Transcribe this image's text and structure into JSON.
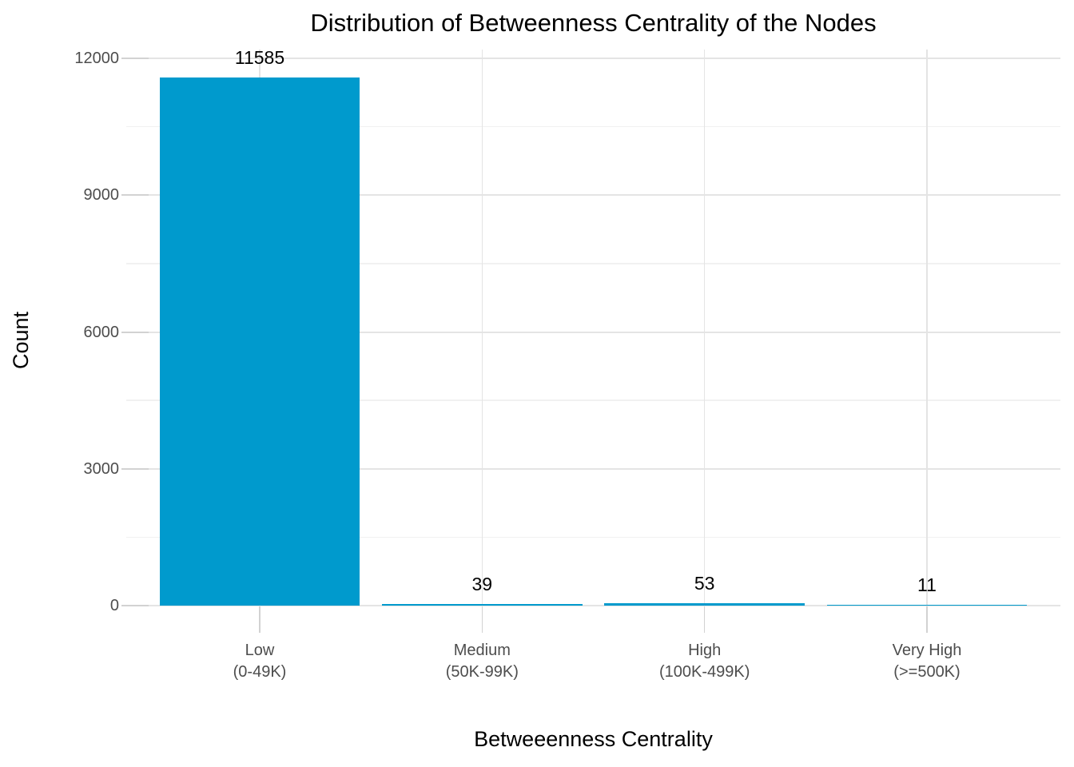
{
  "chart_data": {
    "type": "bar",
    "title": "Distribution of Betweenness Centrality of the Nodes",
    "xlabel": "Betweeenness Centrality",
    "ylabel": "Count",
    "categories": [
      [
        "Low",
        "(0-49K)"
      ],
      [
        "Medium",
        "(50K-99K)"
      ],
      [
        "High",
        "(100K-499K)"
      ],
      [
        "Very High",
        "(>=500K)"
      ]
    ],
    "values": [
      11585,
      39,
      53,
      11
    ],
    "bar_labels": [
      "11585",
      "39",
      "53",
      "11"
    ],
    "yticks": [
      0,
      3000,
      6000,
      9000,
      12000
    ],
    "ylim": [
      0,
      12000
    ],
    "grid": "horizontal major+minor, vertical at category centers",
    "legend": "none",
    "colors": {
      "bar": "#009ACD",
      "grid_major": "#e4e4e4",
      "grid_minor": "#f1f1f1",
      "tick_mark": "#d2d2d2",
      "text": "#000000",
      "tick_text": "#4d4d4d",
      "background": "#ffffff"
    }
  }
}
